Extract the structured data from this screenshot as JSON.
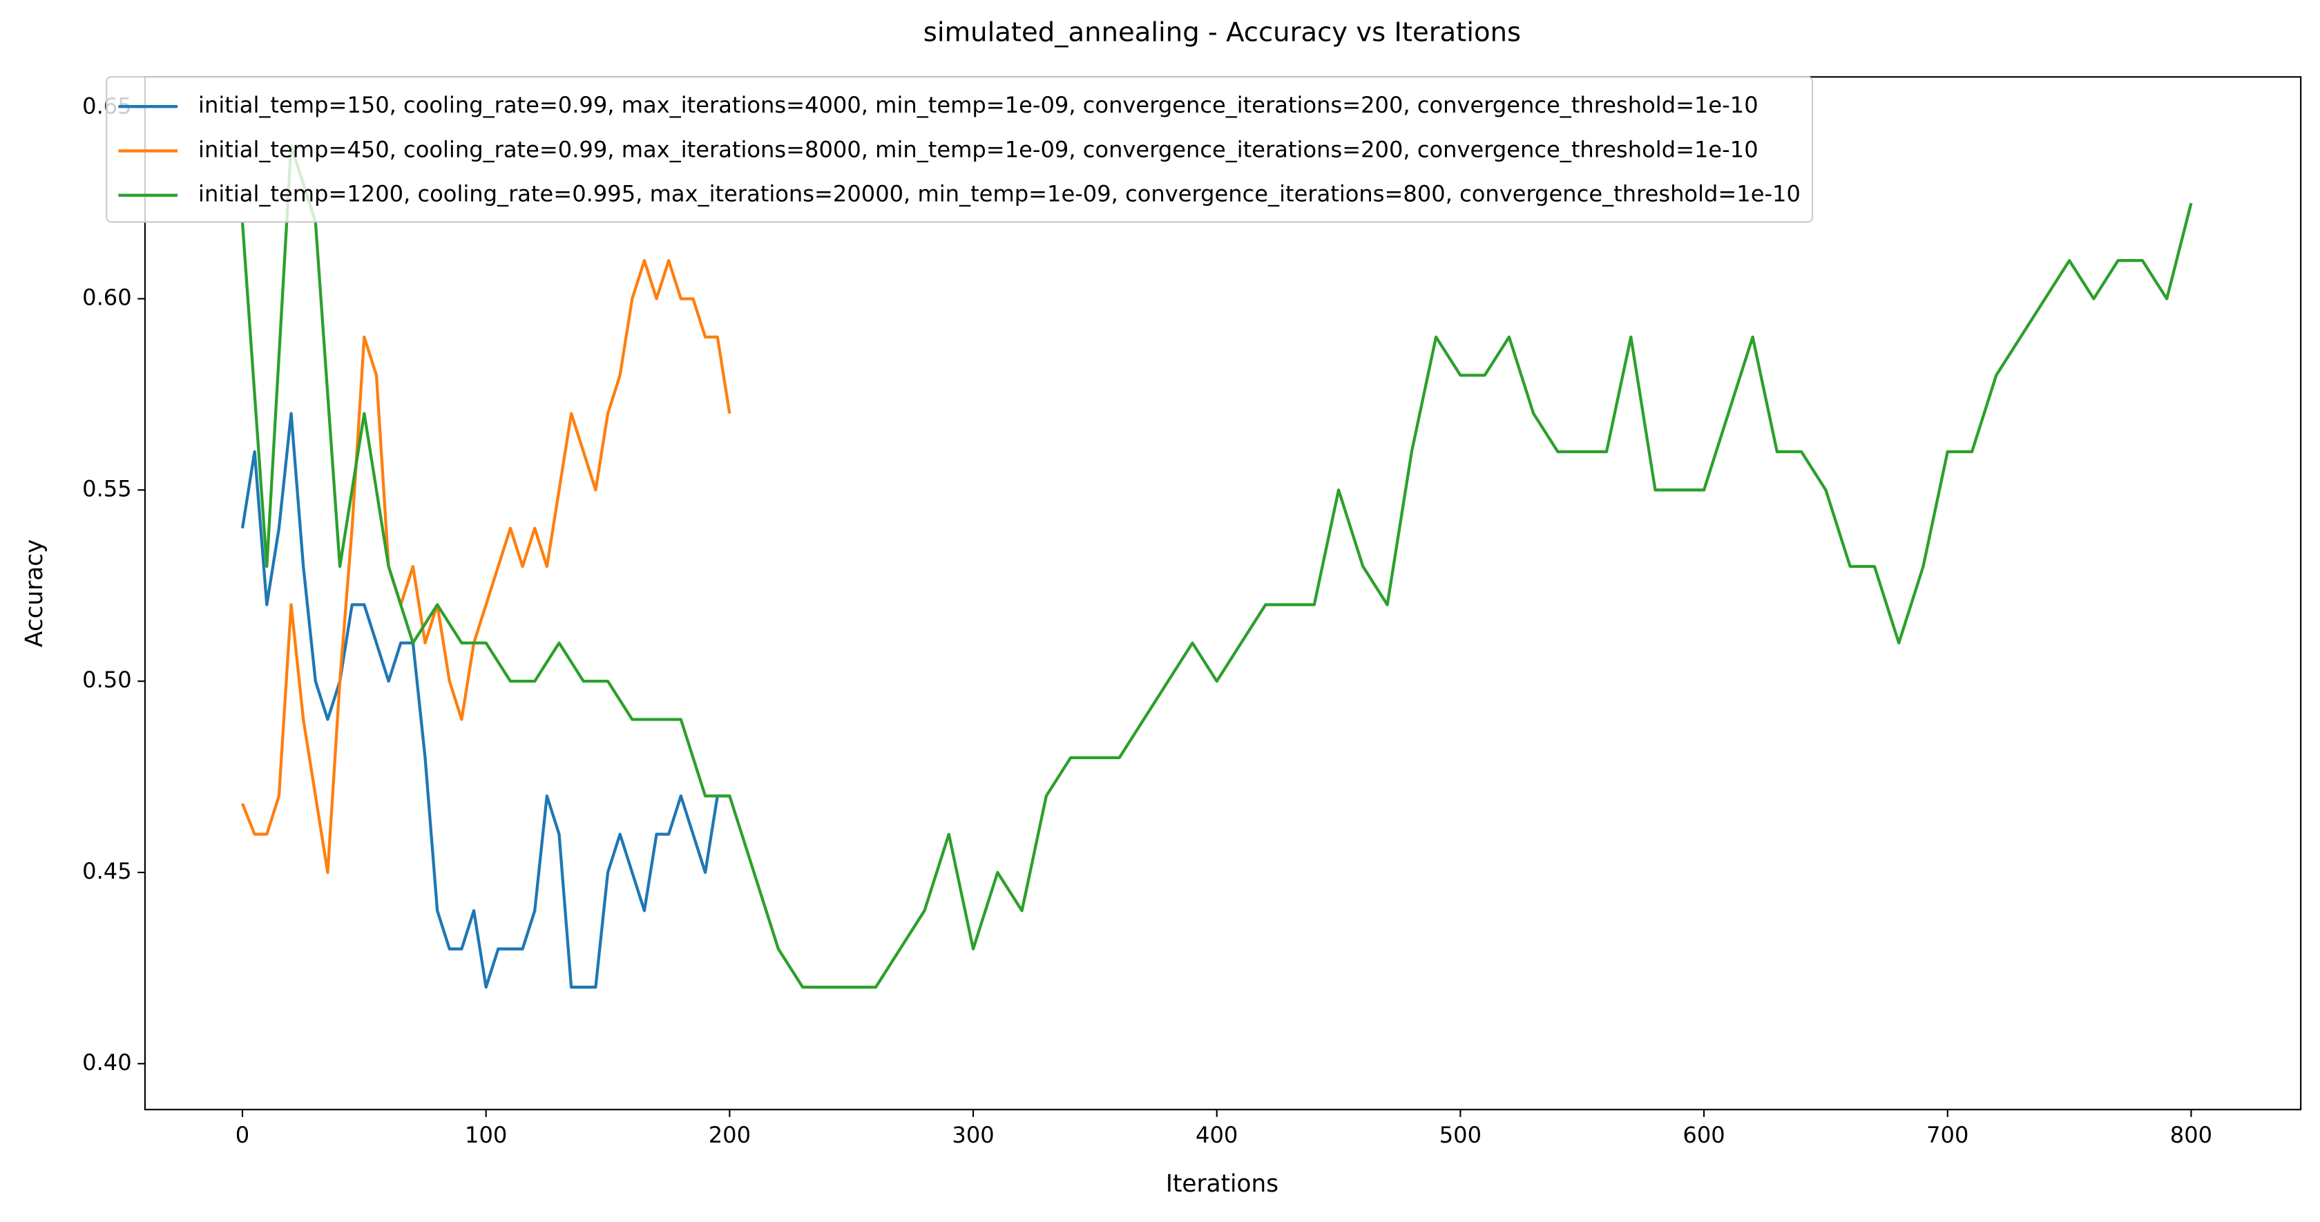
{
  "chart_data": {
    "type": "line",
    "title": "simulated_annealing - Accuracy vs Iterations",
    "xlabel": "Iterations",
    "ylabel": "Accuracy",
    "xlim": [
      -40,
      845
    ],
    "ylim": [
      0.388,
      0.658
    ],
    "xticks": [
      0,
      100,
      200,
      300,
      400,
      500,
      600,
      700,
      800
    ],
    "yticks": [
      {
        "value": 0.4,
        "label": "0.40"
      },
      0.45,
      {
        "value": 0.5,
        "label": "0.50"
      },
      0.55,
      {
        "value": 0.6,
        "label": "0.60"
      },
      0.65
    ],
    "legend": "upper left",
    "series": [
      {
        "name": "initial_temp=150, cooling_rate=0.99, max_iterations=4000, min_temp=1e-09, convergence_iterations=200, convergence_threshold=1e-10",
        "color": "#1f77b4",
        "x": [
          0,
          5,
          10,
          15,
          20,
          25,
          30,
          35,
          40,
          45,
          50,
          55,
          60,
          65,
          70,
          75,
          80,
          85,
          90,
          95,
          100,
          105,
          110,
          115,
          120,
          125,
          130,
          135,
          140,
          145,
          150,
          155,
          160,
          165,
          170,
          175,
          180,
          185,
          190,
          195,
          200
        ],
        "values": [
          0.54,
          0.56,
          0.52,
          0.54,
          0.57,
          0.53,
          0.5,
          0.49,
          0.5,
          0.52,
          0.52,
          0.51,
          0.5,
          0.51,
          0.51,
          0.48,
          0.44,
          0.43,
          0.43,
          0.44,
          0.42,
          0.43,
          0.43,
          0.43,
          0.44,
          0.47,
          0.46,
          0.42,
          0.42,
          0.42,
          0.45,
          0.46,
          0.45,
          0.44,
          0.46,
          0.46,
          0.47,
          0.46,
          0.45,
          0.47,
          0.47
        ]
      },
      {
        "name": "initial_temp=450, cooling_rate=0.99, max_iterations=8000, min_temp=1e-09, convergence_iterations=200, convergence_threshold=1e-10",
        "color": "#ff7f0e",
        "x": [
          0,
          5,
          10,
          15,
          20,
          25,
          30,
          35,
          40,
          45,
          50,
          55,
          60,
          65,
          70,
          75,
          80,
          85,
          90,
          95,
          100,
          105,
          110,
          115,
          120,
          125,
          130,
          135,
          140,
          145,
          150,
          155,
          160,
          165,
          170,
          175,
          180,
          185,
          190,
          195,
          200
        ],
        "values": [
          0.468,
          0.46,
          0.46,
          0.47,
          0.52,
          0.49,
          0.47,
          0.45,
          0.5,
          0.54,
          0.59,
          0.58,
          0.53,
          0.52,
          0.53,
          0.51,
          0.52,
          0.5,
          0.49,
          0.51,
          0.52,
          0.53,
          0.54,
          0.53,
          0.54,
          0.53,
          0.55,
          0.57,
          0.56,
          0.55,
          0.57,
          0.58,
          0.6,
          0.61,
          0.6,
          0.61,
          0.6,
          0.6,
          0.59,
          0.59,
          0.57
        ]
      },
      {
        "name": "initial_temp=1200, cooling_rate=0.995, max_iterations=20000, min_temp=1e-09, convergence_iterations=800, convergence_threshold=1e-10",
        "color": "#2ca02c",
        "x": [
          0,
          10,
          20,
          30,
          40,
          50,
          60,
          70,
          80,
          90,
          100,
          110,
          120,
          130,
          140,
          150,
          160,
          170,
          180,
          190,
          200,
          210,
          220,
          230,
          240,
          250,
          260,
          270,
          280,
          290,
          300,
          310,
          320,
          330,
          340,
          350,
          360,
          370,
          380,
          390,
          400,
          410,
          420,
          430,
          440,
          450,
          460,
          470,
          480,
          490,
          500,
          510,
          520,
          530,
          540,
          550,
          560,
          570,
          580,
          590,
          600,
          610,
          620,
          630,
          640,
          650,
          660,
          670,
          680,
          690,
          700,
          710,
          720,
          730,
          740,
          750,
          760,
          770,
          780,
          790,
          800
        ],
        "values": [
          0.62,
          0.53,
          0.64,
          0.62,
          0.53,
          0.57,
          0.53,
          0.51,
          0.52,
          0.51,
          0.51,
          0.5,
          0.5,
          0.51,
          0.5,
          0.5,
          0.49,
          0.49,
          0.49,
          0.47,
          0.47,
          0.45,
          0.43,
          0.42,
          0.42,
          0.42,
          0.42,
          0.43,
          0.44,
          0.46,
          0.43,
          0.45,
          0.44,
          0.47,
          0.48,
          0.48,
          0.48,
          0.49,
          0.5,
          0.51,
          0.5,
          0.51,
          0.52,
          0.52,
          0.52,
          0.55,
          0.53,
          0.52,
          0.56,
          0.59,
          0.58,
          0.58,
          0.59,
          0.57,
          0.56,
          0.56,
          0.56,
          0.59,
          0.55,
          0.55,
          0.55,
          0.57,
          0.59,
          0.56,
          0.56,
          0.55,
          0.53,
          0.53,
          0.51,
          0.53,
          0.56,
          0.56,
          0.58,
          0.59,
          0.6,
          0.61,
          0.6,
          0.61,
          0.61,
          0.6,
          0.625
        ]
      }
    ]
  }
}
